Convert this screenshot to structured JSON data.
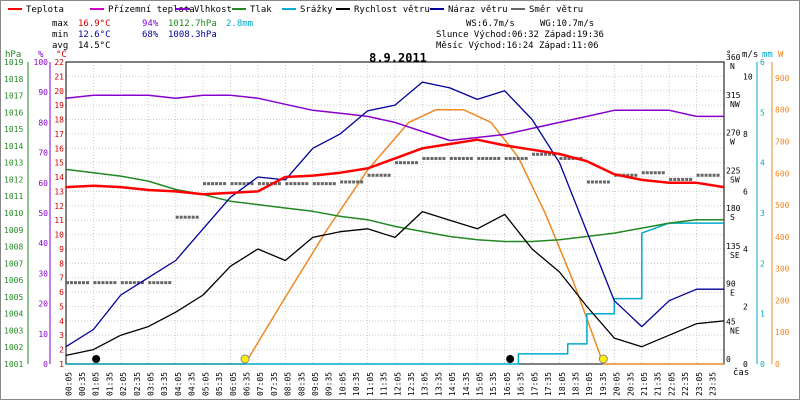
{
  "chart_data": {
    "type": "line",
    "title": "8.9.2011",
    "legend": [
      {
        "label": "Teplota",
        "color": "#ff0000"
      },
      {
        "label": "Přízemní teplota",
        "color": "#cc00cc"
      },
      {
        "label": "Vlhkost",
        "color": "#8800cc"
      },
      {
        "label": "Tlak",
        "color": "#228822"
      },
      {
        "label": "Srážky",
        "color": "#00aacc"
      },
      {
        "label": "Rychlost větru",
        "color": "#000000"
      },
      {
        "label": "Náraz větru",
        "color": "#000099"
      },
      {
        "label": "Směr větru",
        "color": "#666666"
      }
    ],
    "stats": {
      "max_label": "max",
      "max_temp": "16.9°C",
      "max_hum": "94%",
      "max_press": "1012.7hPa",
      "max_rain": "2.8mm",
      "min_label": "min",
      "min_temp": "12.6°C",
      "min_hum": "68%",
      "min_press": "1008.3hPa",
      "avg_label": "avg",
      "avg_temp": "14.5°C",
      "ws": "WS:6.7m/s",
      "wg": "WG:10.7m/s",
      "sun": "Slunce Východ:06:32  Západ:19:36",
      "moon": "Měsíc  Východ:16:24  Západ:11:06"
    },
    "axes": {
      "hpa_title": "hPa",
      "pct_title": "%",
      "c_title": "°C",
      "deg_title": "°",
      "ms_title": "m/s",
      "mm_title": "mm",
      "w_title": "W",
      "x_title": "čas",
      "hpa_ticks": [
        "1019",
        "1018",
        "1017",
        "1016",
        "1015",
        "1014",
        "1013",
        "1012",
        "1011",
        "1010",
        "1009",
        "1008",
        "1007",
        "1006",
        "1005",
        "1004",
        "1003",
        "1002",
        "1001"
      ],
      "pct_ticks": [
        "100",
        "90",
        "80",
        "70",
        "60",
        "50",
        "40",
        "30",
        "20",
        "10",
        "0"
      ],
      "c_ticks": [
        "22",
        "21",
        "20",
        "19",
        "18",
        "17",
        "16",
        "15",
        "14",
        "13",
        "12",
        "11",
        "10",
        "9",
        "8",
        "7",
        "6",
        "5",
        "4",
        "3",
        "2",
        "1"
      ],
      "deg_ticks": [
        [
          "360",
          "N"
        ],
        [
          "315",
          "NW"
        ],
        [
          "270",
          "W"
        ],
        [
          "225",
          "SW"
        ],
        [
          "180",
          "S"
        ],
        [
          "135",
          "SE"
        ],
        [
          "90",
          "E"
        ],
        [
          "45",
          "NE"
        ],
        [
          "0",
          ""
        ]
      ],
      "ms_ticks": [
        "10",
        "8",
        "6",
        "4",
        "2",
        "0"
      ],
      "mm_ticks": [
        "6",
        "5",
        "4",
        "3",
        "2",
        "1",
        "0"
      ],
      "w_ticks": [
        "900",
        "800",
        "700",
        "600",
        "500",
        "400",
        "300",
        "200",
        "100",
        "0"
      ],
      "time_ticks": [
        "00:05",
        "00:35",
        "01:05",
        "01:35",
        "02:05",
        "02:35",
        "03:05",
        "03:35",
        "04:05",
        "04:35",
        "05:05",
        "05:35",
        "06:05",
        "06:35",
        "07:05",
        "07:35",
        "08:05",
        "08:35",
        "09:05",
        "09:35",
        "10:05",
        "10:35",
        "11:05",
        "11:35",
        "12:05",
        "12:35",
        "13:05",
        "13:35",
        "14:05",
        "14:35",
        "15:05",
        "15:35",
        "16:05",
        "16:35",
        "17:05",
        "17:35",
        "18:05",
        "18:35",
        "19:05",
        "19:35",
        "20:05",
        "20:35",
        "21:05",
        "21:35",
        "22:05",
        "22:35",
        "23:05",
        "23:35"
      ]
    },
    "series": {
      "temperature_c": {
        "t": [
          0,
          1,
          2,
          3,
          4,
          5,
          6,
          7,
          8,
          9,
          10,
          11,
          12,
          13,
          14,
          15,
          16,
          17,
          18,
          19,
          20,
          21,
          22,
          23,
          24
        ],
        "v": [
          13.3,
          13.4,
          13.3,
          13.1,
          13.0,
          12.8,
          12.9,
          13.0,
          14.0,
          14.1,
          14.3,
          14.6,
          15.3,
          16.0,
          16.3,
          16.6,
          16.2,
          15.9,
          15.6,
          15.1,
          14.2,
          13.8,
          13.6,
          13.6,
          13.3
        ]
      },
      "humidity_pct": {
        "t": [
          0,
          1,
          2,
          3,
          4,
          5,
          6,
          7,
          8,
          9,
          10,
          11,
          12,
          13,
          14,
          15,
          16,
          17,
          18,
          19,
          20,
          21,
          22,
          23,
          24
        ],
        "v": [
          88,
          89,
          89,
          89,
          88,
          89,
          89,
          88,
          86,
          84,
          83,
          82,
          80,
          77,
          74,
          75,
          76,
          78,
          80,
          82,
          84,
          84,
          84,
          82,
          82
        ]
      },
      "pressure_hpa": {
        "t": [
          0,
          1,
          2,
          3,
          4,
          5,
          6,
          7,
          8,
          9,
          10,
          11,
          12,
          13,
          14,
          15,
          16,
          17,
          18,
          19,
          20,
          21,
          22,
          23,
          24
        ],
        "v": [
          1012.6,
          1012.4,
          1012.2,
          1011.9,
          1011.4,
          1011.1,
          1010.7,
          1010.5,
          1010.3,
          1010.1,
          1009.8,
          1009.6,
          1009.2,
          1008.9,
          1008.6,
          1008.4,
          1008.3,
          1008.3,
          1008.4,
          1008.6,
          1008.8,
          1009.1,
          1009.4,
          1009.6,
          1009.6
        ]
      },
      "rain_mm": {
        "t": [
          0,
          16.5,
          16.5,
          18.3,
          18.3,
          19.0,
          19.0,
          20.0,
          20.0,
          21.0,
          21.0,
          22.0,
          24
        ],
        "v": [
          0,
          0,
          0.2,
          0.2,
          0.4,
          0.4,
          1.0,
          1.0,
          1.3,
          1.3,
          2.6,
          2.8,
          2.8
        ]
      },
      "solar_w": {
        "t": [
          0,
          6.53,
          8,
          9.5,
          11,
          12.5,
          13.5,
          14.5,
          15.5,
          16.5,
          17.5,
          18.5,
          19.6,
          24
        ],
        "v": [
          0,
          0,
          210,
          420,
          610,
          760,
          800,
          800,
          760,
          650,
          470,
          260,
          0,
          0
        ]
      },
      "wind_speed_ms": {
        "t": [
          0,
          1,
          2,
          3,
          4,
          5,
          6,
          7,
          8,
          9,
          10,
          11,
          12,
          13,
          14,
          15,
          16,
          17,
          18,
          19,
          20,
          21,
          22,
          23,
          24
        ],
        "v": [
          0.3,
          0.5,
          1.0,
          1.3,
          1.8,
          2.4,
          3.4,
          4.0,
          3.6,
          4.4,
          4.6,
          4.7,
          4.4,
          5.3,
          5.0,
          4.7,
          5.2,
          4.0,
          3.2,
          2.0,
          0.9,
          0.6,
          1.0,
          1.4,
          1.5
        ]
      },
      "wind_gust_ms": {
        "t": [
          0,
          1,
          2,
          3,
          4,
          5,
          6,
          7,
          8,
          9,
          10,
          11,
          12,
          13,
          14,
          15,
          16,
          17,
          18,
          19,
          20,
          21,
          22,
          23,
          24
        ],
        "v": [
          0.6,
          1.2,
          2.4,
          3.0,
          3.6,
          4.7,
          5.8,
          6.5,
          6.4,
          7.5,
          8.0,
          8.8,
          9.0,
          9.8,
          9.6,
          9.2,
          9.5,
          8.5,
          7.0,
          4.6,
          2.2,
          1.3,
          2.2,
          2.6,
          2.6
        ]
      },
      "wind_dir_deg": {
        "t": [
          0,
          1,
          2,
          3,
          4,
          5,
          6,
          7,
          8,
          9,
          10,
          11,
          12,
          13,
          14,
          15,
          16,
          17,
          18,
          19,
          20,
          21,
          22,
          23,
          24
        ],
        "v": [
          97,
          97,
          97,
          97,
          175,
          215,
          215,
          215,
          215,
          215,
          217,
          225,
          240,
          245,
          245,
          245,
          245,
          250,
          245,
          217,
          225,
          228,
          220,
          225,
          255
        ]
      }
    },
    "markers": {
      "rain_event_times": [
        1.1,
        16.2
      ],
      "sun_times": [
        6.53,
        19.6
      ]
    },
    "ranges": {
      "xlim": [
        0,
        24
      ],
      "temp": [
        1,
        22
      ],
      "humidity": [
        0,
        100
      ],
      "pressure": [
        1001,
        1019
      ],
      "wind_ms": [
        0,
        10.5
      ],
      "rain": [
        0,
        6
      ],
      "solar": [
        0,
        950
      ],
      "dir": [
        0,
        360
      ]
    }
  }
}
